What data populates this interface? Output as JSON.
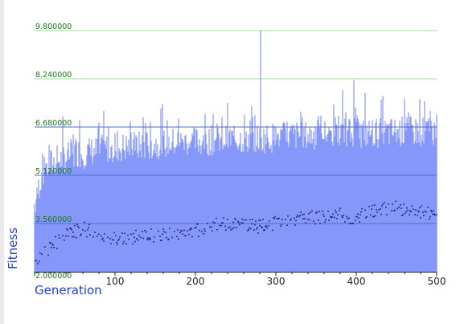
{
  "chart_data": {
    "type": "area",
    "xlabel": "Generation",
    "ylabel": "Fitness",
    "xlim": [
      0,
      500
    ],
    "ylim": [
      2.0,
      9.8
    ],
    "xticks": [
      "100",
      "200",
      "300",
      "400",
      "500"
    ],
    "xtick_values": [
      100,
      200,
      300,
      400,
      500
    ],
    "yticks": [
      "2.000000",
      "3.560000",
      "5.120000",
      "6.680000",
      "8.240000",
      "9.800000"
    ],
    "ytick_values": [
      2.0,
      3.56,
      5.12,
      6.68,
      8.24,
      9.8
    ],
    "grid": true,
    "series": [
      {
        "style": "filled spikes",
        "color": "#8093f8",
        "points": [
          [
            0,
            4.2
          ],
          [
            10,
            5.2
          ],
          [
            20,
            5.5
          ],
          [
            30,
            5.6
          ],
          [
            40,
            5.7
          ],
          [
            50,
            5.9
          ],
          [
            60,
            5.8
          ],
          [
            70,
            5.9
          ],
          [
            80,
            5.9
          ],
          [
            90,
            6.0
          ],
          [
            100,
            6.0
          ],
          [
            120,
            6.05
          ],
          [
            140,
            6.1
          ],
          [
            160,
            6.15
          ],
          [
            180,
            6.2
          ],
          [
            200,
            6.2
          ],
          [
            220,
            6.25
          ],
          [
            240,
            6.3
          ],
          [
            260,
            6.3
          ],
          [
            280,
            6.3
          ],
          [
            300,
            6.35
          ],
          [
            320,
            6.4
          ],
          [
            340,
            6.4
          ],
          [
            360,
            6.45
          ],
          [
            380,
            6.45
          ],
          [
            400,
            6.5
          ],
          [
            420,
            6.5
          ],
          [
            440,
            6.5
          ],
          [
            460,
            6.55
          ],
          [
            480,
            6.55
          ],
          [
            500,
            6.6
          ]
        ],
        "peaks": [
          [
            18,
            6.1
          ],
          [
            56,
            6.9
          ],
          [
            86,
            7.2
          ],
          [
            135,
            7.0
          ],
          [
            165,
            6.9
          ],
          [
            212,
            7.1
          ],
          [
            222,
            7.1
          ],
          [
            281,
            9.8
          ],
          [
            333,
            7.0
          ],
          [
            397,
            8.2
          ],
          [
            460,
            7.6
          ],
          [
            492,
            7.2
          ]
        ]
      },
      {
        "style": "scatter",
        "color": "#1c1c6a",
        "points": [
          [
            0,
            2.3
          ],
          [
            10,
            2.5
          ],
          [
            20,
            2.8
          ],
          [
            30,
            3.0
          ],
          [
            40,
            3.2
          ],
          [
            50,
            3.3
          ],
          [
            60,
            3.4
          ],
          [
            70,
            3.3
          ],
          [
            80,
            3.2
          ],
          [
            90,
            3.15
          ],
          [
            100,
            3.1
          ],
          [
            120,
            3.1
          ],
          [
            140,
            3.15
          ],
          [
            160,
            3.2
          ],
          [
            180,
            3.25
          ],
          [
            200,
            3.3
          ],
          [
            210,
            3.4
          ],
          [
            220,
            3.5
          ],
          [
            240,
            3.55
          ],
          [
            260,
            3.5
          ],
          [
            280,
            3.45
          ],
          [
            290,
            3.5
          ],
          [
            300,
            3.6
          ],
          [
            320,
            3.7
          ],
          [
            340,
            3.75
          ],
          [
            360,
            3.8
          ],
          [
            380,
            3.85
          ],
          [
            400,
            3.7
          ],
          [
            410,
            3.9
          ],
          [
            420,
            3.95
          ],
          [
            440,
            4.05
          ],
          [
            450,
            4.1
          ],
          [
            460,
            4.0
          ],
          [
            480,
            3.9
          ],
          [
            500,
            3.9
          ]
        ]
      }
    ]
  }
}
